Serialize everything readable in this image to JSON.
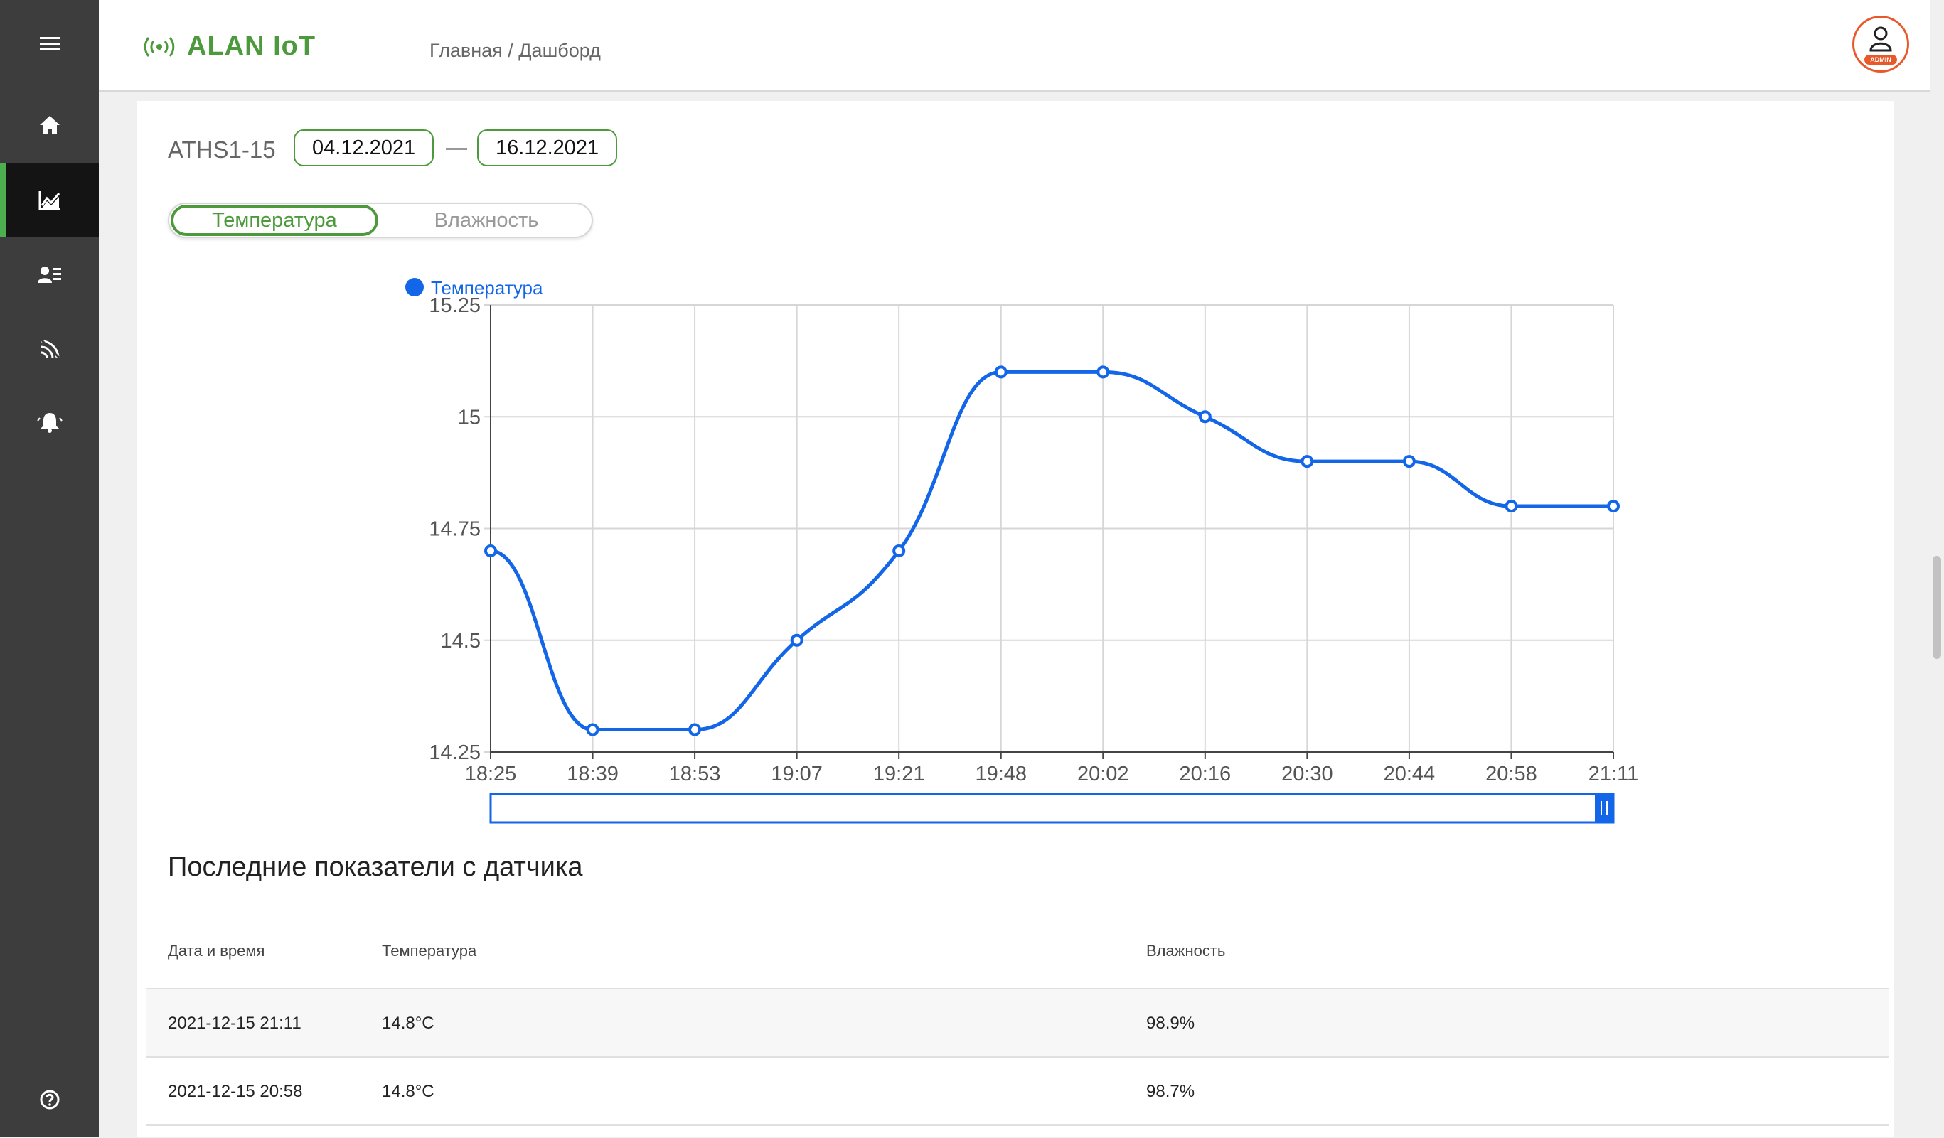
{
  "app": {
    "name": "ALAN IoT"
  },
  "header": {
    "breadcrumb": "Главная / Дашборд",
    "avatar_badge": "ADMIN"
  },
  "sidebar": {
    "items": [
      {
        "icon": "menu-icon"
      },
      {
        "icon": "home-icon"
      },
      {
        "icon": "chart-icon",
        "active": true
      },
      {
        "icon": "users-list-icon"
      },
      {
        "icon": "signal-icon"
      },
      {
        "icon": "alarm-bell-icon"
      },
      {
        "icon": "help-icon"
      }
    ]
  },
  "device": {
    "name": "ATHS1-15",
    "date_from": "04.12.2021",
    "date_separator": "—",
    "date_to": "16.12.2021"
  },
  "toggle": {
    "active": "Температура",
    "inactive": "Влажность"
  },
  "colors": {
    "accent": "#4c9a3c",
    "series": "#1366e8",
    "avatar": "#e8582b"
  },
  "chart_data": {
    "type": "line",
    "legend": "Температура",
    "x": [
      "18:25",
      "18:39",
      "18:53",
      "19:07",
      "19:21",
      "19:48",
      "20:02",
      "20:16",
      "20:30",
      "20:44",
      "20:58",
      "21:11"
    ],
    "series": [
      {
        "name": "Температура",
        "values": [
          14.7,
          14.3,
          14.3,
          14.5,
          14.7,
          15.1,
          15.1,
          15.0,
          14.9,
          14.9,
          14.8,
          14.8
        ]
      }
    ],
    "yticks": [
      "15.25",
      "15",
      "14.75",
      "14.5",
      "14.25"
    ],
    "ylim": [
      14.25,
      15.25
    ],
    "grid": true,
    "legend_position": "top-left",
    "zoom_slider": true
  },
  "table": {
    "title": "Последние показатели с датчика",
    "columns": [
      "Дата и время",
      "Температура",
      "Влажность"
    ],
    "rows": [
      [
        "2021-12-15 21:11",
        "14.8°C",
        "98.9%"
      ],
      [
        "2021-12-15 20:58",
        "14.8°C",
        "98.7%"
      ]
    ]
  }
}
